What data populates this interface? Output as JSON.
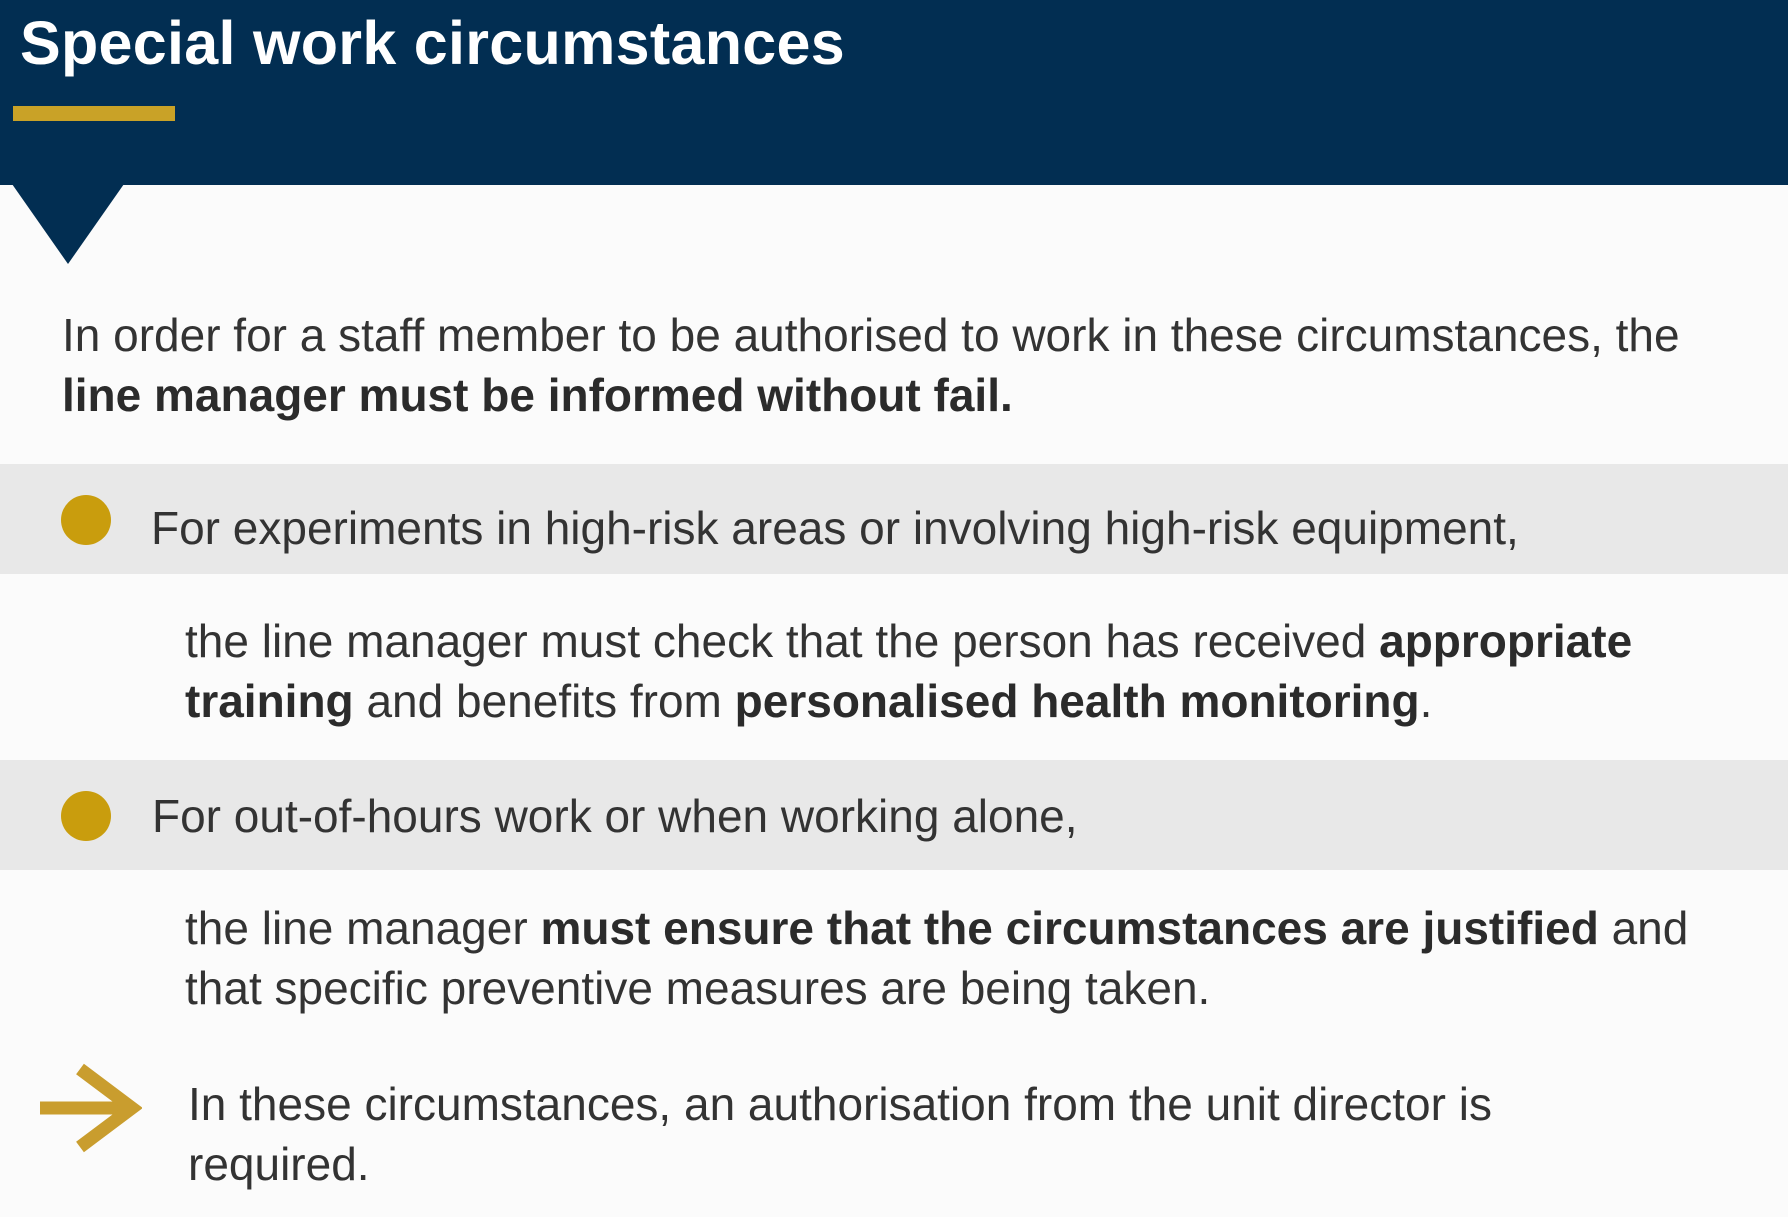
{
  "header": {
    "title": "Special work circumstances",
    "bg_color": "#022e52",
    "accent_color": "#c9a227"
  },
  "intro": {
    "part1": "In order for a staff member to be authorised to work in these circumstances, the ",
    "bold1": "line manager must be informed without fail."
  },
  "item1": {
    "heading": "For experiments in high-risk areas or involving high-risk equipment,",
    "text1": "the line manager must check that the person has received ",
    "bold1": "appropriate training",
    "text2": " and benefits from ",
    "bold2": "personalised health monitoring",
    "text3": "."
  },
  "item2": {
    "heading": "For out-of-hours work or when working alone,",
    "text1": "the line manager ",
    "bold1": "must ensure that the circumstances are justified",
    "text2": " and that specific preventive measures are being taken."
  },
  "conclusion": {
    "text": "In these circumstances, an authorisation from the unit director is required."
  },
  "icons": {
    "bullet": "circle-bullet-icon",
    "arrow": "arrow-right-icon",
    "pointer": "triangle-pointer-icon"
  }
}
